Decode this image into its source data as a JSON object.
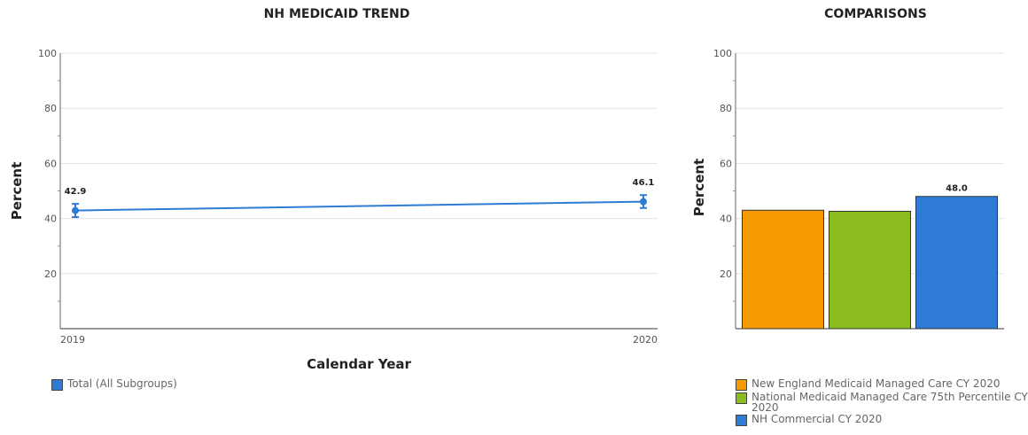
{
  "trend": {
    "title": "NH MEDICAID TREND",
    "legend_label": "Total (All Subgroups)"
  },
  "comparisons": {
    "title": "COMPARISONS",
    "legend": [
      {
        "label": "New England Medicaid Managed Care CY 2020",
        "color": "#f79a00"
      },
      {
        "label": "National Medicaid Managed Care 75th Percentile CY 2020",
        "color": "#8cbd20"
      },
      {
        "label": "NH Commercial CY 2020",
        "color": "#2e7bd6"
      }
    ]
  },
  "chart_data": [
    {
      "type": "line",
      "title": "NH MEDICAID TREND",
      "xlabel": "Calendar Year",
      "ylabel": "Percent",
      "categories": [
        "2019",
        "2020"
      ],
      "ylim": [
        0,
        100
      ],
      "yticks": [
        20,
        40,
        60,
        80,
        100
      ],
      "grid": true,
      "series": [
        {
          "name": "Total (All Subgroups)",
          "color": "#2e7bd6",
          "values": [
            42.9,
            46.1
          ],
          "error_low": [
            40.5,
            43.8
          ],
          "error_high": [
            45.3,
            48.5
          ],
          "data_labels": [
            "42.9",
            "46.1"
          ]
        }
      ],
      "legend": "bottom-left"
    },
    {
      "type": "bar",
      "title": "COMPARISONS",
      "ylabel": "Percent",
      "ylim": [
        0,
        100
      ],
      "yticks": [
        20,
        40,
        60,
        80,
        100
      ],
      "grid": true,
      "categories": [
        "New England Medicaid Managed Care CY 2020",
        "National Medicaid Managed Care 75th Percentile CY 2020",
        "NH Commercial CY 2020"
      ],
      "values": [
        43.0,
        42.6,
        48.0
      ],
      "colors": [
        "#f79a00",
        "#8cbd20",
        "#2e7bd6"
      ],
      "data_labels": [
        "",
        "",
        "48.0"
      ],
      "legend": "bottom"
    }
  ]
}
